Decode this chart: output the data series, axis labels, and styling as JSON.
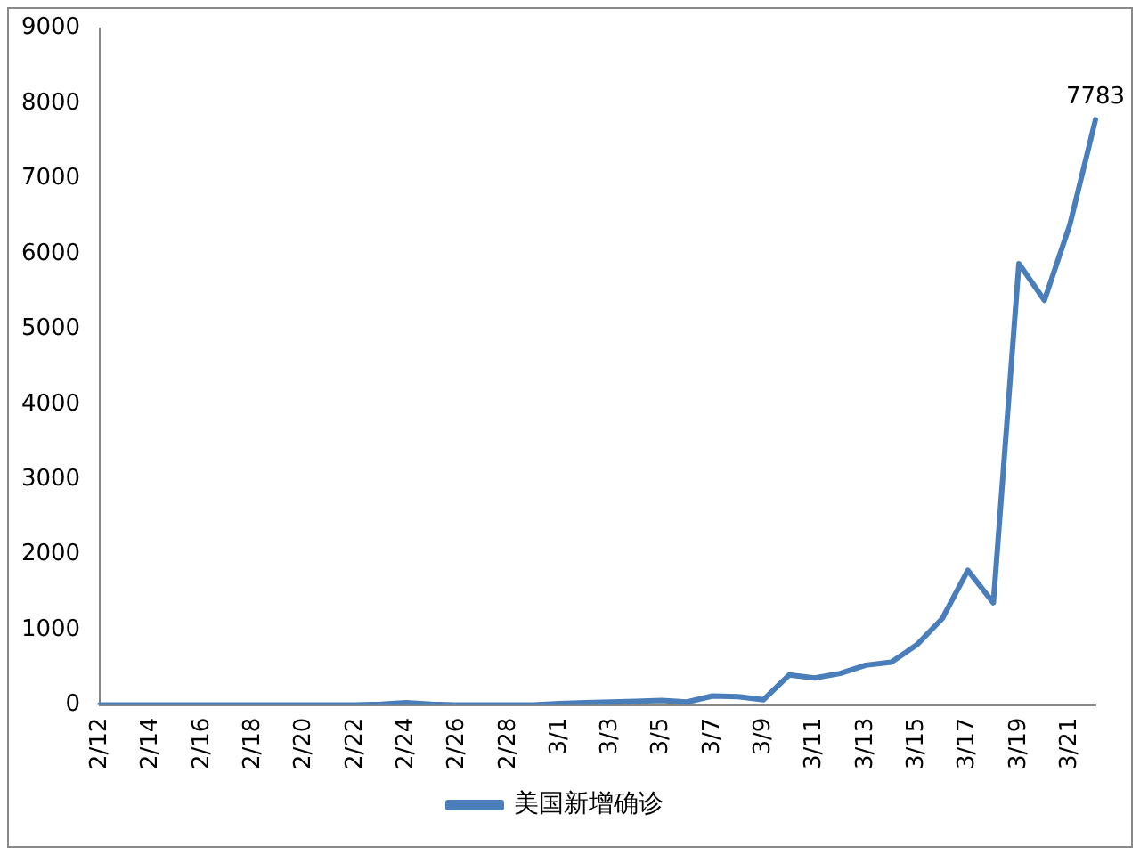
{
  "chart_data": {
    "type": "line",
    "categories": [
      "2/12",
      null,
      "2/14",
      null,
      "2/16",
      null,
      "2/18",
      null,
      "2/20",
      null,
      "2/22",
      null,
      "2/24",
      null,
      "2/26",
      null,
      "2/28",
      null,
      "3/1",
      null,
      "3/3",
      null,
      "3/5",
      null,
      "3/7",
      null,
      "3/9",
      null,
      "3/11",
      null,
      "3/13",
      null,
      "3/15",
      null,
      "3/17",
      null,
      "3/19",
      null,
      "3/21",
      null
    ],
    "series": [
      {
        "name": "美国新增确诊",
        "color": "#4a7ebb",
        "values": [
          0,
          0,
          0,
          0,
          0,
          0,
          0,
          0,
          0,
          0,
          0,
          10,
          30,
          10,
          0,
          0,
          0,
          0,
          20,
          30,
          40,
          50,
          60,
          40,
          120,
          110,
          70,
          400,
          360,
          420,
          530,
          570,
          800,
          1150,
          1790,
          1360,
          5870,
          5380,
          6390,
          7783
        ],
        "value_labels": [
          null,
          null,
          null,
          null,
          null,
          null,
          null,
          null,
          null,
          null,
          null,
          null,
          null,
          null,
          null,
          null,
          null,
          null,
          null,
          null,
          null,
          null,
          null,
          null,
          null,
          null,
          null,
          null,
          null,
          null,
          null,
          null,
          null,
          null,
          null,
          null,
          null,
          null,
          null,
          "7783"
        ]
      }
    ],
    "ylim": [
      0,
      9000
    ],
    "yticks": [
      0,
      1000,
      2000,
      3000,
      4000,
      5000,
      6000,
      7000,
      8000,
      9000
    ],
    "grid": false,
    "legend": "bottom",
    "marker": "none",
    "line_style": "solid"
  }
}
